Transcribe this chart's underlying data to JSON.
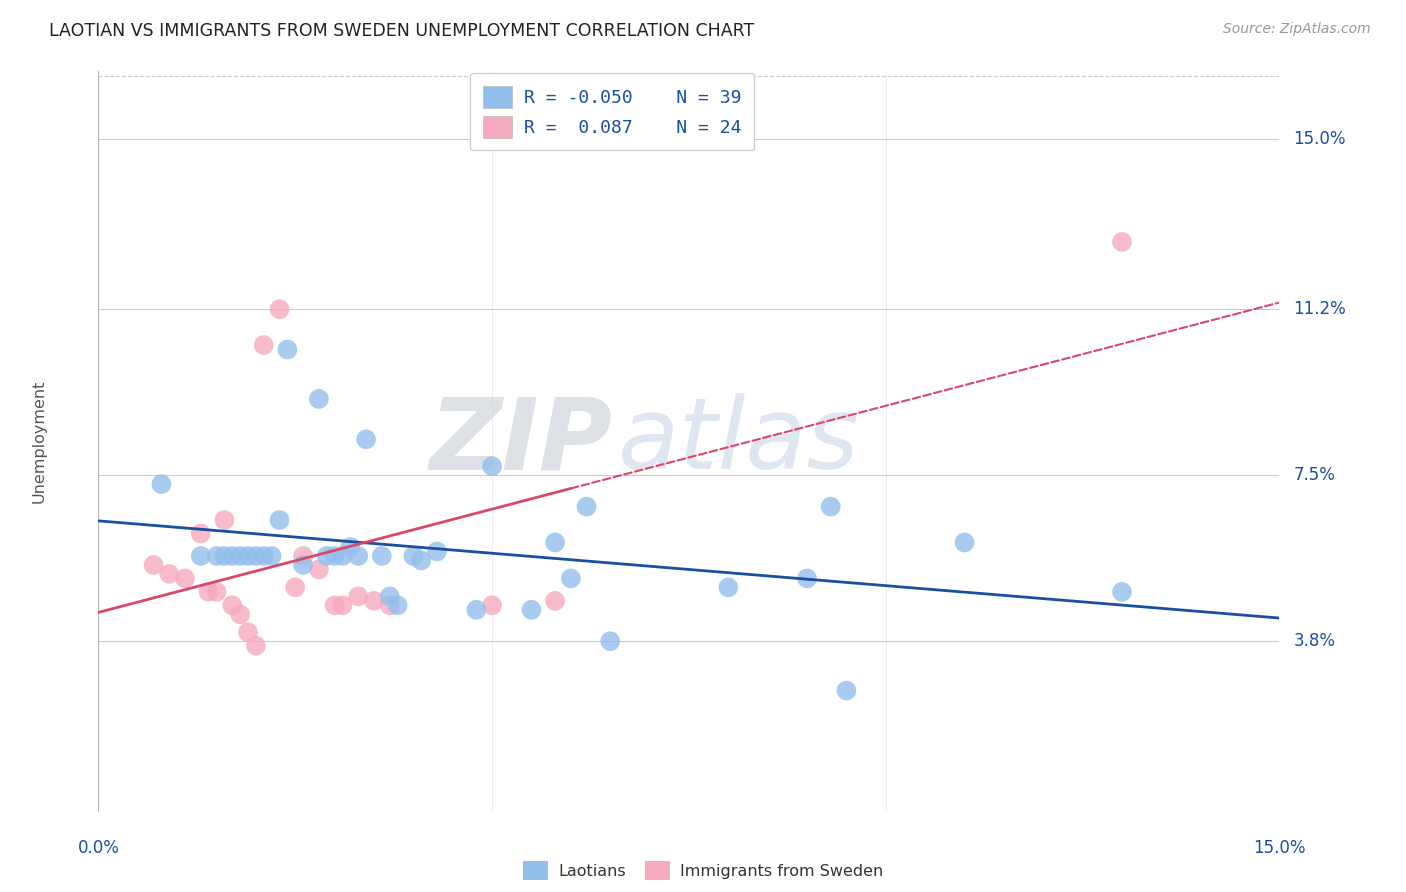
{
  "title": "LAOTIAN VS IMMIGRANTS FROM SWEDEN UNEMPLOYMENT CORRELATION CHART",
  "source": "Source: ZipAtlas.com",
  "ylabel": "Unemployment",
  "ytick_labels": [
    "15.0%",
    "11.2%",
    "7.5%",
    "3.8%"
  ],
  "ytick_values": [
    0.15,
    0.112,
    0.075,
    0.038
  ],
  "xmin": 0.0,
  "xmax": 0.15,
  "ymin": 0.0,
  "ymax": 0.165,
  "legend_blue_R": "-0.050",
  "legend_blue_N": "39",
  "legend_pink_R": "0.087",
  "legend_pink_N": "24",
  "blue_color": "#92bfec",
  "pink_color": "#f5aabf",
  "blue_line_color": "#1a4fa0",
  "pink_line_color": "#d94868",
  "watermark_zip": "ZIP",
  "watermark_atlas": "atlas",
  "background_color": "#ffffff",
  "grid_color": "#cccccc",
  "blue_scatter_x": [
    0.008,
    0.013,
    0.015,
    0.016,
    0.017,
    0.018,
    0.019,
    0.02,
    0.021,
    0.022,
    0.023,
    0.024,
    0.026,
    0.028,
    0.029,
    0.03,
    0.031,
    0.032,
    0.033,
    0.034,
    0.036,
    0.037,
    0.038,
    0.04,
    0.041,
    0.043,
    0.048,
    0.05,
    0.055,
    0.058,
    0.06,
    0.062,
    0.065,
    0.08,
    0.09,
    0.093,
    0.095,
    0.11,
    0.13
  ],
  "blue_scatter_y": [
    0.073,
    0.057,
    0.057,
    0.057,
    0.057,
    0.057,
    0.057,
    0.057,
    0.057,
    0.057,
    0.065,
    0.103,
    0.055,
    0.092,
    0.057,
    0.057,
    0.057,
    0.059,
    0.057,
    0.083,
    0.057,
    0.048,
    0.046,
    0.057,
    0.056,
    0.058,
    0.045,
    0.077,
    0.045,
    0.06,
    0.052,
    0.068,
    0.038,
    0.05,
    0.052,
    0.068,
    0.027,
    0.06,
    0.049
  ],
  "pink_scatter_x": [
    0.007,
    0.009,
    0.011,
    0.013,
    0.014,
    0.015,
    0.016,
    0.017,
    0.018,
    0.019,
    0.02,
    0.021,
    0.023,
    0.025,
    0.026,
    0.028,
    0.03,
    0.031,
    0.033,
    0.035,
    0.037,
    0.05,
    0.058,
    0.13
  ],
  "pink_scatter_y": [
    0.055,
    0.053,
    0.052,
    0.062,
    0.049,
    0.049,
    0.065,
    0.046,
    0.044,
    0.04,
    0.037,
    0.104,
    0.112,
    0.05,
    0.057,
    0.054,
    0.046,
    0.046,
    0.048,
    0.047,
    0.046,
    0.046,
    0.047,
    0.127
  ]
}
